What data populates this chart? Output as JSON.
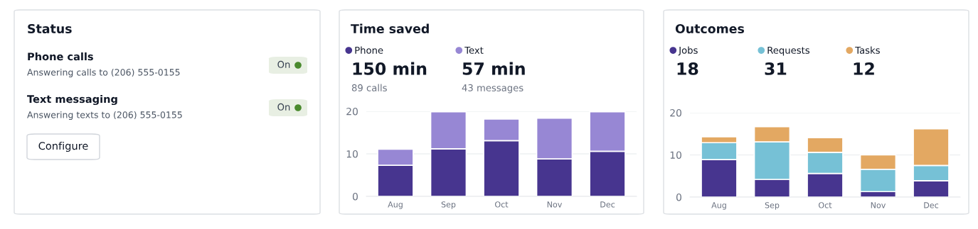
{
  "chart_data": [
    {
      "type": "other",
      "title": "Status",
      "annotations": [
        "Phone calls",
        "Answering calls to (206) 555-0155",
        "On",
        "Text messaging",
        "Answering texts to (206) 555-0155",
        "On",
        "Configure"
      ]
    },
    {
      "type": "bar",
      "title": "Time saved",
      "stacked": true,
      "categories": [
        "Aug",
        "Sep",
        "Oct",
        "Nov",
        "Dec"
      ],
      "series": [
        {
          "name": "Phone",
          "color": "#47358f",
          "values": [
            7.3,
            11.2,
            13.1,
            8.8,
            10.6
          ]
        },
        {
          "name": "Text",
          "color": "#9787d4",
          "values": [
            3.8,
            8.7,
            5.1,
            9.6,
            9.3
          ]
        }
      ],
      "annotations": [
        "150 min",
        "89 calls",
        "57 min",
        "43 messages"
      ],
      "ylim": [
        0,
        20
      ],
      "yticks": [
        0,
        10,
        20
      ],
      "grid": "y",
      "legend": "top left"
    },
    {
      "type": "bar",
      "title": "Outcomes",
      "stacked": true,
      "categories": [
        "Aug",
        "Sep",
        "Oct",
        "Nov",
        "Dec"
      ],
      "series": [
        {
          "name": "Jobs",
          "color": "#47358f",
          "values": [
            8.9,
            4.2,
            5.6,
            1.3,
            3.9
          ]
        },
        {
          "name": "Requests",
          "color": "#76c1d6",
          "values": [
            4.0,
            8.9,
            5.0,
            5.3,
            3.6
          ]
        },
        {
          "name": "Tasks",
          "color": "#e3a862",
          "values": [
            1.4,
            3.6,
            3.5,
            3.4,
            8.7
          ]
        }
      ],
      "annotations": [
        "18",
        "31",
        "12"
      ],
      "ylim": [
        0,
        20
      ],
      "yticks": [
        0,
        10,
        20
      ],
      "grid": "y",
      "legend": "top left"
    }
  ]
}
